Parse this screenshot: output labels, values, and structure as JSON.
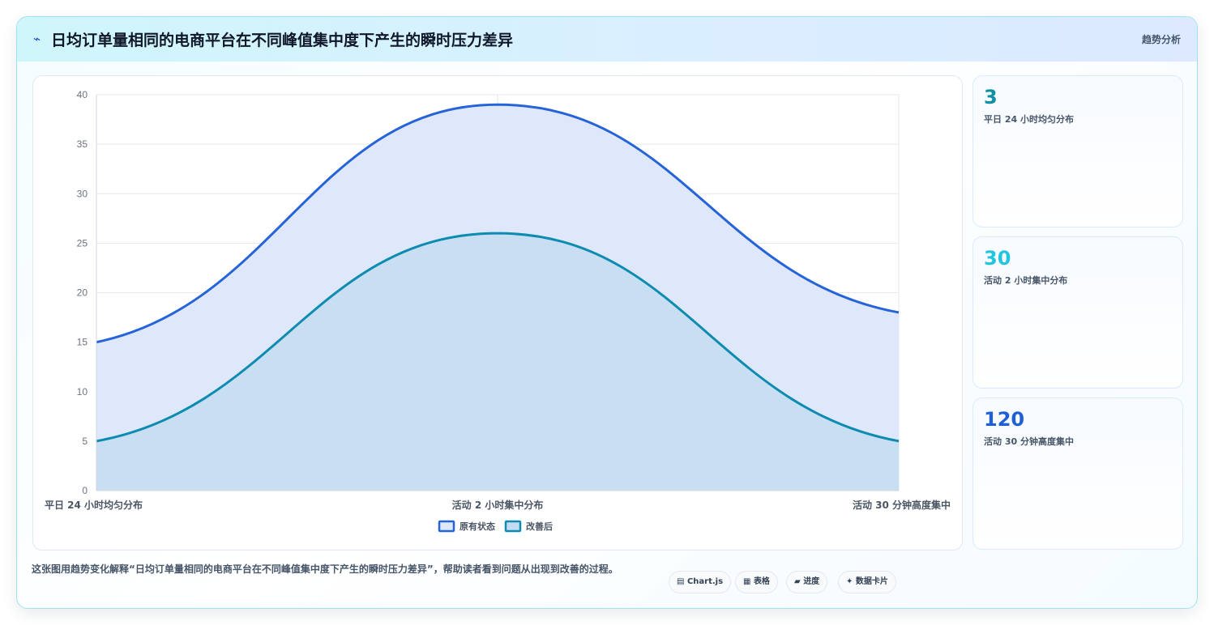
{
  "header": {
    "icon": "trend-line-icon",
    "title": "日均订单量相同的电商平台在不同峰值集中度下产生的瞬时压力差异",
    "tag": "趋势分析"
  },
  "chart_data": {
    "type": "area",
    "categories": [
      "平日 24 小时均匀分布",
      "活动 2 小时集中分布",
      "活动 30 分钟高度集中"
    ],
    "series": [
      {
        "name": "原有状态",
        "values": [
          15,
          39,
          18
        ],
        "color": "#2563d9",
        "fill": "#dfe8fb"
      },
      {
        "name": "改善后",
        "values": [
          5,
          26,
          5
        ],
        "color": "#0e8bb0",
        "fill": "#c4dcf1"
      }
    ],
    "ylim": [
      0,
      40
    ],
    "yticks": [
      0,
      5,
      10,
      15,
      20,
      25,
      30,
      35,
      40
    ],
    "grid": true,
    "legend_position": "bottom",
    "smooth": true
  },
  "stats": [
    {
      "value": "3",
      "label": "平日 24 小时均匀分布",
      "color": "#0e8fa3"
    },
    {
      "value": "30",
      "label": "活动 2 小时集中分布",
      "color": "#22c5e0"
    },
    {
      "value": "120",
      "label": "活动 30 分钟高度集中",
      "color": "#1d5fd6"
    }
  ],
  "footer": {
    "description": "这张图用趋势变化解释“日均订单量相同的电商平台在不同峰值集中度下产生的瞬时压力差异”，帮助读者看到问题从出现到改善的过程。",
    "pills": [
      {
        "icon": "chart-icon",
        "glyph": "▤",
        "label": "Chart.js"
      },
      {
        "icon": "table-icon",
        "glyph": "▦",
        "label": "表格"
      },
      {
        "icon": "progress-icon",
        "glyph": "▰",
        "label": "进度"
      },
      {
        "icon": "card-icon",
        "glyph": "✦",
        "label": "数据卡片"
      }
    ]
  }
}
